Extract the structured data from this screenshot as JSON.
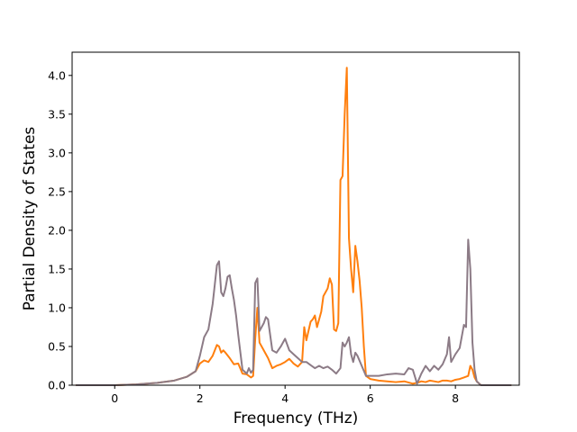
{
  "chart_data": {
    "type": "line",
    "title": "",
    "xlabel": "Frequency (THz)",
    "ylabel": "Partial Density of States",
    "xlim": [
      -1.0,
      9.5
    ],
    "ylim": [
      0.0,
      4.3
    ],
    "xticks": [
      0,
      2,
      4,
      6,
      8
    ],
    "xtick_labels": [
      "0",
      "2",
      "4",
      "6",
      "8"
    ],
    "yticks": [
      0.0,
      0.5,
      1.0,
      1.5,
      2.0,
      2.5,
      3.0,
      3.5,
      4.0
    ],
    "ytick_labels": [
      "0.0",
      "0.5",
      "1.0",
      "1.5",
      "2.0",
      "2.5",
      "3.0",
      "3.5",
      "4.0"
    ],
    "grid": false,
    "legend": "none",
    "series": [
      {
        "color": "#ff7f0e",
        "x": [
          -0.9,
          0.0,
          0.5,
          1.0,
          1.4,
          1.7,
          1.9,
          2.0,
          2.1,
          2.2,
          2.3,
          2.4,
          2.45,
          2.5,
          2.55,
          2.6,
          2.7,
          2.8,
          2.9,
          3.0,
          3.1,
          3.2,
          3.25,
          3.3,
          3.35,
          3.4,
          3.5,
          3.6,
          3.7,
          3.8,
          3.9,
          4.0,
          4.1,
          4.2,
          4.3,
          4.4,
          4.45,
          4.5,
          4.55,
          4.6,
          4.65,
          4.7,
          4.75,
          4.8,
          4.85,
          4.9,
          4.95,
          5.0,
          5.05,
          5.1,
          5.15,
          5.2,
          5.25,
          5.3,
          5.35,
          5.4,
          5.45,
          5.5,
          5.55,
          5.6,
          5.65,
          5.7,
          5.75,
          5.8,
          5.85,
          5.9,
          6.0,
          6.2,
          6.4,
          6.6,
          6.8,
          7.0,
          7.1,
          7.2,
          7.3,
          7.4,
          7.5,
          7.6,
          7.7,
          7.8,
          7.9,
          8.0,
          8.1,
          8.2,
          8.3,
          8.35,
          8.4,
          8.45,
          8.5,
          8.6,
          9.3
        ],
        "y": [
          0.0,
          0.0,
          0.01,
          0.03,
          0.06,
          0.11,
          0.18,
          0.28,
          0.32,
          0.3,
          0.38,
          0.52,
          0.5,
          0.42,
          0.45,
          0.42,
          0.35,
          0.27,
          0.28,
          0.15,
          0.14,
          0.1,
          0.12,
          0.6,
          1.0,
          0.55,
          0.45,
          0.35,
          0.22,
          0.25,
          0.27,
          0.3,
          0.34,
          0.28,
          0.24,
          0.3,
          0.75,
          0.58,
          0.7,
          0.82,
          0.85,
          0.9,
          0.75,
          0.85,
          0.95,
          1.15,
          1.2,
          1.25,
          1.38,
          1.3,
          0.72,
          0.7,
          0.8,
          2.65,
          2.7,
          3.5,
          4.1,
          1.9,
          1.5,
          1.2,
          1.8,
          1.6,
          1.35,
          1.0,
          0.5,
          0.12,
          0.08,
          0.06,
          0.05,
          0.04,
          0.05,
          0.02,
          0.03,
          0.05,
          0.04,
          0.06,
          0.05,
          0.04,
          0.06,
          0.06,
          0.05,
          0.07,
          0.08,
          0.1,
          0.12,
          0.25,
          0.2,
          0.1,
          0.05,
          0.0,
          0.0
        ]
      },
      {
        "color": "#8c7b86",
        "x": [
          -0.9,
          0.0,
          0.5,
          1.0,
          1.4,
          1.7,
          1.9,
          2.0,
          2.1,
          2.2,
          2.3,
          2.35,
          2.4,
          2.45,
          2.5,
          2.55,
          2.6,
          2.65,
          2.7,
          2.75,
          2.8,
          2.85,
          2.9,
          3.0,
          3.1,
          3.15,
          3.2,
          3.25,
          3.3,
          3.35,
          3.4,
          3.5,
          3.55,
          3.6,
          3.7,
          3.8,
          3.9,
          4.0,
          4.1,
          4.2,
          4.3,
          4.4,
          4.5,
          4.6,
          4.7,
          4.8,
          4.9,
          5.0,
          5.1,
          5.2,
          5.3,
          5.35,
          5.4,
          5.45,
          5.5,
          5.55,
          5.6,
          5.65,
          5.7,
          5.8,
          5.9,
          6.0,
          6.2,
          6.4,
          6.6,
          6.8,
          6.9,
          7.0,
          7.1,
          7.2,
          7.3,
          7.4,
          7.5,
          7.6,
          7.7,
          7.8,
          7.85,
          7.9,
          8.0,
          8.1,
          8.2,
          8.25,
          8.3,
          8.35,
          8.4,
          8.45,
          8.5,
          8.6,
          9.3
        ],
        "y": [
          0.0,
          0.0,
          0.01,
          0.03,
          0.06,
          0.11,
          0.18,
          0.38,
          0.62,
          0.72,
          1.05,
          1.3,
          1.55,
          1.6,
          1.2,
          1.15,
          1.25,
          1.4,
          1.42,
          1.25,
          1.1,
          0.9,
          0.65,
          0.2,
          0.15,
          0.22,
          0.16,
          0.2,
          1.32,
          1.38,
          0.7,
          0.8,
          0.88,
          0.85,
          0.45,
          0.42,
          0.5,
          0.6,
          0.45,
          0.4,
          0.35,
          0.3,
          0.3,
          0.26,
          0.22,
          0.25,
          0.22,
          0.24,
          0.2,
          0.15,
          0.22,
          0.55,
          0.5,
          0.55,
          0.62,
          0.4,
          0.3,
          0.42,
          0.38,
          0.25,
          0.12,
          0.12,
          0.12,
          0.14,
          0.15,
          0.14,
          0.22,
          0.2,
          0.02,
          0.15,
          0.25,
          0.18,
          0.25,
          0.2,
          0.27,
          0.4,
          0.62,
          0.3,
          0.4,
          0.48,
          0.78,
          0.75,
          1.88,
          1.5,
          0.55,
          0.2,
          0.05,
          0.0,
          0.0
        ]
      }
    ]
  }
}
